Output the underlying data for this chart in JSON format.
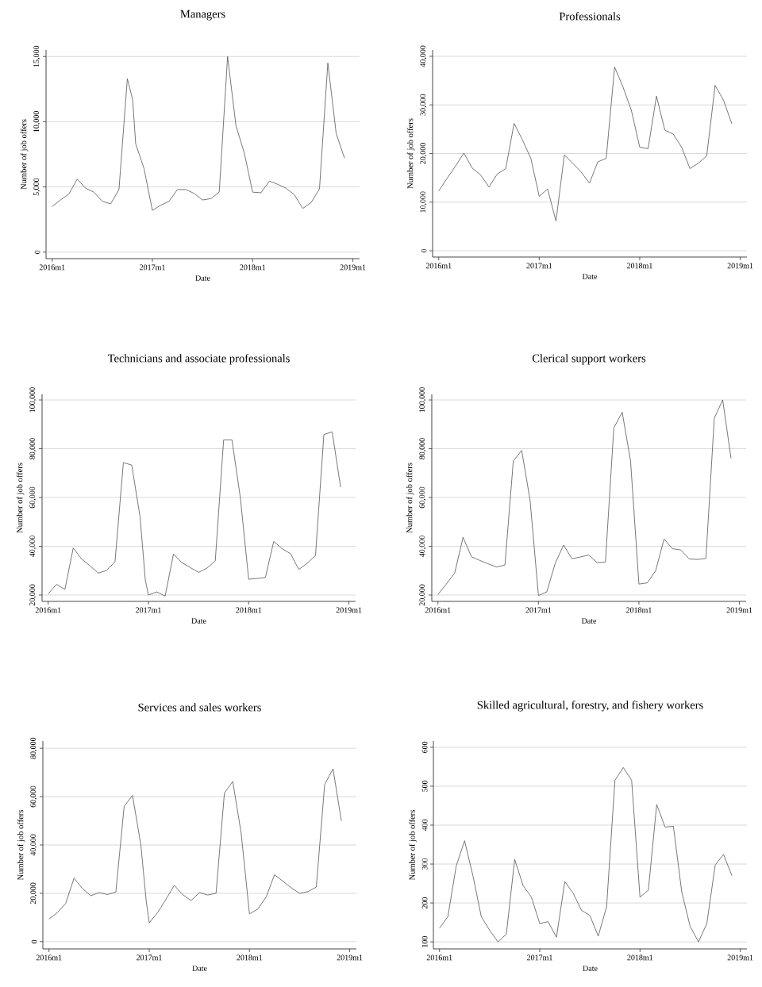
{
  "chart_data": [
    {
      "type": "line",
      "title": "Managers",
      "xlabel": "Date",
      "ylabel": "Number of job offers",
      "x": [
        "2016-01",
        "2016-02",
        "2016-03",
        "2016-04",
        "2016-05",
        "2016-06",
        "2016-07",
        "2016-08",
        "2016-09",
        "2016-10",
        "2016-10-20",
        "2016-11",
        "2016-12",
        "2017-01",
        "2017-02",
        "2017-03",
        "2017-04",
        "2017-05",
        "2017-06",
        "2017-07",
        "2017-08",
        "2017-09",
        "2017-10",
        "2017-11",
        "2017-12",
        "2018-01",
        "2018-02",
        "2018-03",
        "2018-04",
        "2018-05",
        "2018-06",
        "2018-07",
        "2018-08",
        "2018-09",
        "2018-10",
        "2018-11",
        "2018-12"
      ],
      "series": [
        {
          "color": "#555555",
          "values": [
            3500,
            4000,
            4450,
            5600,
            4900,
            4600,
            3900,
            3700,
            4800,
            13300,
            11700,
            8300,
            6400,
            3200,
            3600,
            3900,
            4800,
            4800,
            4500,
            4000,
            4100,
            4600,
            15000,
            9700,
            7600,
            4600,
            4550,
            5450,
            5200,
            4900,
            4400,
            3350,
            3800,
            4850,
            14500,
            9100,
            7200
          ]
        }
      ],
      "xlim": [
        "2015-12-09",
        "2019-01-25"
      ],
      "ylim": [
        -500,
        15500
      ],
      "xticks": [
        {
          "value": "2016-01",
          "label": "2016m1"
        },
        {
          "value": "2017-01",
          "label": "2017m1"
        },
        {
          "value": "2018-01",
          "label": "2018m1"
        },
        {
          "value": "2019-01",
          "label": "2019m1"
        }
      ],
      "yticks": [
        0,
        {
          "value": 5000,
          "label": "5,000"
        },
        {
          "value": 10000,
          "label": "10,000"
        },
        {
          "value": 15000,
          "label": "15,000"
        }
      ],
      "grid": "y"
    },
    {
      "type": "line",
      "title": "Professionals",
      "xlabel": "Date",
      "ylabel": "Number of job offers",
      "x": [
        "2016-01",
        "2016-02",
        "2016-03",
        "2016-04",
        "2016-05",
        "2016-06",
        "2016-07",
        "2016-08",
        "2016-09",
        "2016-10",
        "2016-11",
        "2016-12",
        "2017-01",
        "2017-02",
        "2017-03",
        "2017-04",
        "2017-05",
        "2017-06",
        "2017-07",
        "2017-08",
        "2017-09",
        "2017-10",
        "2017-11",
        "2017-12",
        "2018-01",
        "2018-02",
        "2018-03",
        "2018-04",
        "2018-05",
        "2018-06",
        "2018-07",
        "2018-08",
        "2018-09",
        "2018-10",
        "2018-11",
        "2018-12"
      ],
      "series": [
        {
          "color": "#555555",
          "values": [
            12300,
            14900,
            17400,
            20100,
            17000,
            15600,
            13100,
            15800,
            16900,
            26200,
            22800,
            19000,
            11200,
            12700,
            6100,
            19700,
            18000,
            16200,
            13900,
            18300,
            19000,
            37800,
            33700,
            28900,
            21300,
            21000,
            31800,
            24800,
            24000,
            21300,
            16900,
            18000,
            19500,
            34000,
            31000,
            26100
          ]
        }
      ],
      "xlim": [
        "2015-12-09",
        "2019-01-25"
      ],
      "ylim": [
        -1300,
        41300
      ],
      "xticks": [
        {
          "value": "2016-01",
          "label": "2016m1"
        },
        {
          "value": "2017-01",
          "label": "2017m1"
        },
        {
          "value": "2018-01",
          "label": "2018m1"
        },
        {
          "value": "2019-01",
          "label": "2019m1"
        }
      ],
      "yticks": [
        0,
        {
          "value": 10000,
          "label": "10,000"
        },
        {
          "value": 20000,
          "label": "20,000"
        },
        {
          "value": 30000,
          "label": "30,000"
        },
        {
          "value": 40000,
          "label": "40,000"
        }
      ],
      "grid": "y"
    },
    {
      "type": "line",
      "title": "Technicians and associate professionals",
      "xlabel": "Date",
      "ylabel": "Number of job offers",
      "x": [
        "2016-01",
        "2016-02",
        "2016-03",
        "2016-04",
        "2016-05",
        "2016-06",
        "2016-07",
        "2016-08",
        "2016-09",
        "2016-10",
        "2016-11",
        "2016-12",
        "2016-12-20",
        "2017-01",
        "2017-02",
        "2017-03",
        "2017-04",
        "2017-05",
        "2017-06",
        "2017-07",
        "2017-08",
        "2017-09",
        "2017-10",
        "2017-11",
        "2017-12",
        "2018-01",
        "2018-02",
        "2018-03",
        "2018-04",
        "2018-05",
        "2018-06",
        "2018-07",
        "2018-08",
        "2018-09",
        "2018-10",
        "2018-11",
        "2018-12"
      ],
      "series": [
        {
          "color": "#555555",
          "values": [
            20500,
            24400,
            22300,
            39300,
            34800,
            32000,
            29000,
            30100,
            33700,
            74300,
            73300,
            52000,
            26000,
            20000,
            21300,
            19600,
            36800,
            33300,
            31300,
            29300,
            31000,
            34000,
            83600,
            83600,
            60000,
            26500,
            26800,
            27200,
            42000,
            39000,
            37000,
            30500,
            33000,
            36200,
            85800,
            86900,
            64300
          ]
        }
      ],
      "xlim": [
        "2015-12-09",
        "2019-01-25"
      ],
      "ylim": [
        17400,
        102300
      ],
      "xticks": [
        {
          "value": "2016-01",
          "label": "2016m1"
        },
        {
          "value": "2017-01",
          "label": "2017m1"
        },
        {
          "value": "2018-01",
          "label": "2018m1"
        },
        {
          "value": "2019-01",
          "label": "2019m1"
        }
      ],
      "yticks": [
        {
          "value": 20000,
          "label": "20,000"
        },
        {
          "value": 40000,
          "label": "40,000"
        },
        {
          "value": 60000,
          "label": "60,000"
        },
        {
          "value": 80000,
          "label": "80,000"
        },
        {
          "value": 100000,
          "label": "100,000"
        }
      ],
      "grid": "y"
    },
    {
      "type": "line",
      "title": "Clerical support workers",
      "xlabel": "Date",
      "ylabel": "Number of job offers",
      "x": [
        "2016-01",
        "2016-02",
        "2016-03",
        "2016-04",
        "2016-05",
        "2016-06",
        "2016-07",
        "2016-08",
        "2016-09",
        "2016-10",
        "2016-11",
        "2016-12",
        "2017-01",
        "2017-02",
        "2017-03",
        "2017-04",
        "2017-05",
        "2017-06",
        "2017-07",
        "2017-08",
        "2017-09",
        "2017-10",
        "2017-11",
        "2017-12",
        "2018-01",
        "2018-02",
        "2018-03",
        "2018-04",
        "2018-05",
        "2018-06",
        "2018-07",
        "2018-08",
        "2018-09",
        "2018-10",
        "2018-11",
        "2018-12"
      ],
      "series": [
        {
          "color": "#555555",
          "values": [
            20200,
            24500,
            29000,
            43700,
            35700,
            34200,
            32800,
            31500,
            32300,
            75000,
            79300,
            59000,
            19800,
            21300,
            33000,
            40500,
            34900,
            35600,
            36400,
            33300,
            33500,
            88500,
            95000,
            75000,
            24500,
            25000,
            30000,
            43000,
            39000,
            38500,
            34800,
            34600,
            35000,
            92500,
            100000,
            76000
          ]
        }
      ],
      "xlim": [
        "2015-12-09",
        "2019-01-25"
      ],
      "ylim": [
        17400,
        102300
      ],
      "xticks": [
        {
          "value": "2016-01",
          "label": "2016m1"
        },
        {
          "value": "2017-01",
          "label": "2017m1"
        },
        {
          "value": "2018-01",
          "label": "2018m1"
        },
        {
          "value": "2019-01",
          "label": "2019m1"
        }
      ],
      "yticks": [
        {
          "value": 20000,
          "label": "20,000"
        },
        {
          "value": 40000,
          "label": "40,000"
        },
        {
          "value": 60000,
          "label": "60,000"
        },
        {
          "value": 80000,
          "label": "80,000"
        },
        {
          "value": 100000,
          "label": "100,000"
        }
      ],
      "grid": "y"
    },
    {
      "type": "line",
      "title": "Services and sales workers",
      "xlabel": "Date",
      "ylabel": "Number of job offers",
      "x": [
        "2016-01",
        "2016-02",
        "2016-03",
        "2016-04",
        "2016-05",
        "2016-06",
        "2016-07",
        "2016-08",
        "2016-09",
        "2016-10",
        "2016-11",
        "2016-12",
        "2016-12-20",
        "2017-01",
        "2017-02",
        "2017-03",
        "2017-04",
        "2017-05",
        "2017-06",
        "2017-07",
        "2017-08",
        "2017-09",
        "2017-10",
        "2017-11",
        "2017-12",
        "2018-01",
        "2018-02",
        "2018-03",
        "2018-04",
        "2018-05",
        "2018-06",
        "2018-07",
        "2018-08",
        "2018-09",
        "2018-10",
        "2018-11",
        "2018-12"
      ],
      "series": [
        {
          "color": "#555555",
          "values": [
            9400,
            12000,
            15800,
            26300,
            22000,
            19000,
            20300,
            19500,
            20500,
            56000,
            60500,
            40000,
            17000,
            7800,
            12000,
            17500,
            23300,
            19500,
            17000,
            20300,
            19300,
            20000,
            61500,
            66300,
            45000,
            11500,
            13500,
            18500,
            27700,
            25000,
            22300,
            20000,
            20700,
            22600,
            65000,
            71500,
            50000
          ]
        }
      ],
      "xlim": [
        "2015-12-09",
        "2019-01-25"
      ],
      "ylim": [
        -3000,
        83000
      ],
      "xticks": [
        {
          "value": "2016-01",
          "label": "2016m1"
        },
        {
          "value": "2017-01",
          "label": "2017m1"
        },
        {
          "value": "2018-01",
          "label": "2018m1"
        },
        {
          "value": "2019-01",
          "label": "2019m1"
        }
      ],
      "yticks": [
        0,
        {
          "value": 20000,
          "label": "20,000"
        },
        {
          "value": 40000,
          "label": "40,000"
        },
        {
          "value": 60000,
          "label": "60,000"
        },
        {
          "value": 80000,
          "label": "80,000"
        }
      ],
      "grid": "y"
    },
    {
      "type": "line",
      "title": "Skilled agricultural, forestry, and fishery workers",
      "xlabel": "Date",
      "ylabel": "Number of job offers",
      "x": [
        "2016-01",
        "2016-02",
        "2016-03",
        "2016-04",
        "2016-05",
        "2016-06",
        "2016-07",
        "2016-08",
        "2016-09",
        "2016-10",
        "2016-11",
        "2016-12",
        "2017-01",
        "2017-02",
        "2017-03",
        "2017-04",
        "2017-05",
        "2017-06",
        "2017-07",
        "2017-08",
        "2017-09",
        "2017-10",
        "2017-11",
        "2017-12",
        "2018-01",
        "2018-02",
        "2018-03",
        "2018-04",
        "2018-05",
        "2018-06",
        "2018-07",
        "2018-08",
        "2018-09",
        "2018-10",
        "2018-11",
        "2018-12"
      ],
      "series": [
        {
          "color": "#555555",
          "values": [
            135,
            165,
            295,
            360,
            270,
            165,
            130,
            100,
            120,
            312,
            245,
            215,
            147,
            152,
            112,
            255,
            225,
            181,
            168,
            115,
            190,
            515,
            548,
            515,
            215,
            233,
            453,
            395,
            397,
            228,
            140,
            100,
            147,
            297,
            325,
            270
          ]
        }
      ],
      "xlim": [
        "2015-12-09",
        "2019-01-25"
      ],
      "ylim": [
        82,
        616
      ],
      "xticks": [
        {
          "value": "2016-01",
          "label": "2016m1"
        },
        {
          "value": "2017-01",
          "label": "2017m1"
        },
        {
          "value": "2018-01",
          "label": "2018m1"
        },
        {
          "value": "2019-01",
          "label": "2019m1"
        }
      ],
      "yticks": [
        100,
        200,
        300,
        400,
        500,
        600
      ],
      "grid": "y"
    }
  ]
}
